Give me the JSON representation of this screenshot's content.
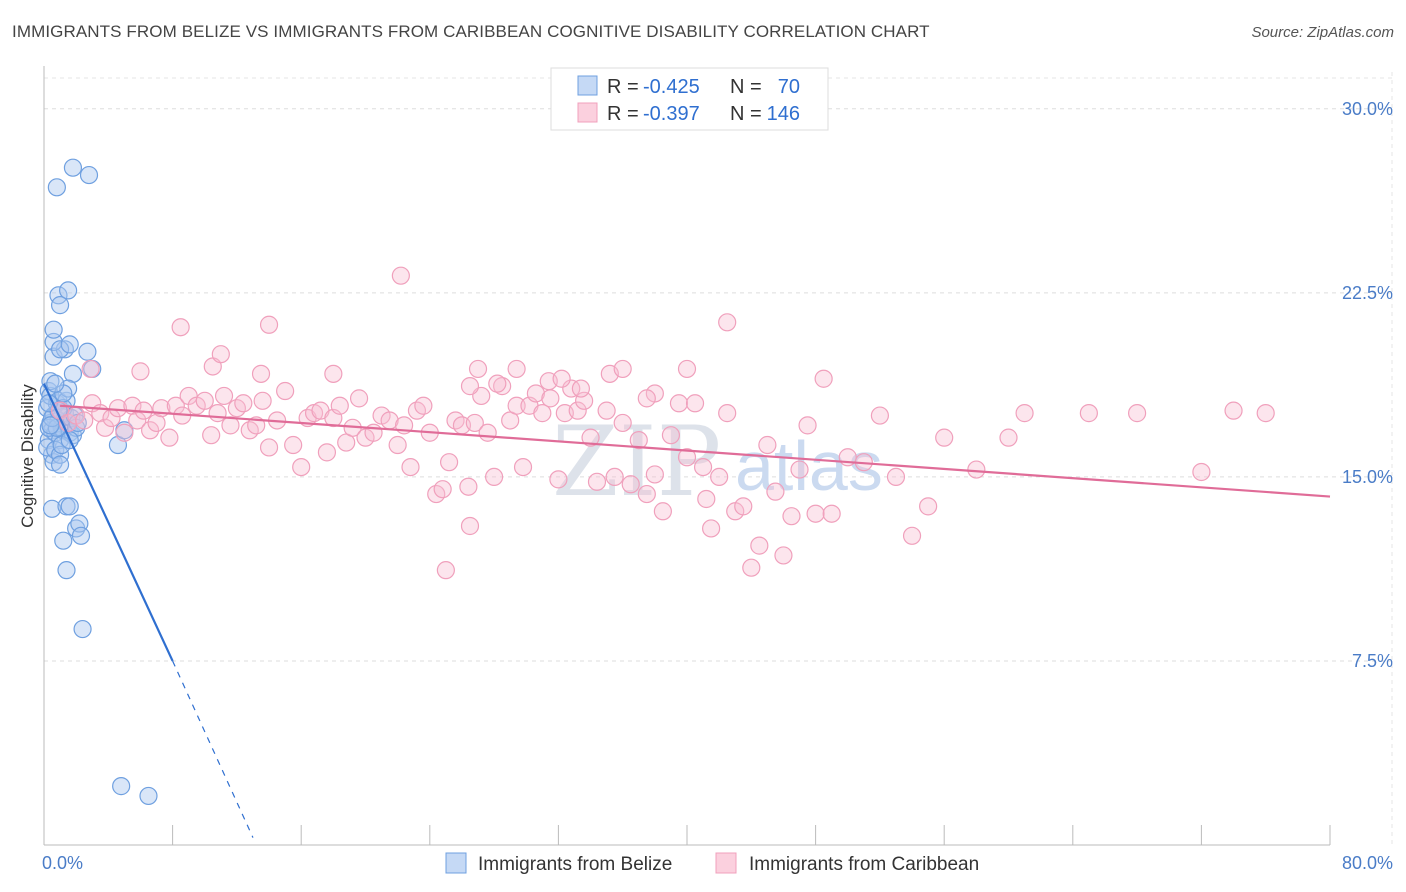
{
  "title": "IMMIGRANTS FROM BELIZE VS IMMIGRANTS FROM CARIBBEAN COGNITIVE DISABILITY CORRELATION CHART",
  "source": "Source: ZipAtlas.com",
  "watermark": {
    "zip": "ZIP",
    "atlas": "atlas"
  },
  "chart_data": {
    "type": "scatter",
    "title": "IMMIGRANTS FROM BELIZE VS IMMIGRANTS FROM CARIBBEAN COGNITIVE DISABILITY CORRELATION CHART",
    "xlabel": "",
    "ylabel": "Cognitive Disability",
    "xlim": [
      0,
      80
    ],
    "ylim": [
      0,
      31.5
    ],
    "x_tick_labels": [
      "0.0%",
      "80.0%"
    ],
    "y_ticks": [
      7.5,
      15.0,
      22.5,
      30.0
    ],
    "y_tick_labels": [
      "7.5%",
      "15.0%",
      "22.5%",
      "30.0%"
    ],
    "grid": true,
    "legend_placement": "top-center",
    "series": [
      {
        "name": "Immigrants from Belize",
        "color": "#6fa0e0",
        "line_color": "#2f6fd0",
        "R": "-0.425",
        "N": "70",
        "trend": {
          "x0": 0,
          "y0": 18.8,
          "x1": 8.0,
          "y1": 7.5,
          "dash_to_x": 13,
          "dash_to_y": 0.3
        },
        "points": [
          [
            0.2,
            17.8
          ],
          [
            0.3,
            18.5
          ],
          [
            0.4,
            17.2
          ],
          [
            0.5,
            16.9
          ],
          [
            0.3,
            16.5
          ],
          [
            0.6,
            17.5
          ],
          [
            0.8,
            18.0
          ],
          [
            0.5,
            15.9
          ],
          [
            0.7,
            16.8
          ],
          [
            0.9,
            17.3
          ],
          [
            1.0,
            16.5
          ],
          [
            1.1,
            17.0
          ],
          [
            0.4,
            18.3
          ],
          [
            0.6,
            15.6
          ],
          [
            1.2,
            16.9
          ],
          [
            1.3,
            17.6
          ],
          [
            1.5,
            17.1
          ],
          [
            1.6,
            16.8
          ],
          [
            1.8,
            16.7
          ],
          [
            0.2,
            16.2
          ],
          [
            0.3,
            17.0
          ],
          [
            0.4,
            18.9
          ],
          [
            0.9,
            18.1
          ],
          [
            1.4,
            18.1
          ],
          [
            1.7,
            17.4
          ],
          [
            1.2,
            17.8
          ],
          [
            0.8,
            17.0
          ],
          [
            0.5,
            17.4
          ],
          [
            0.7,
            16.1
          ],
          [
            1.0,
            15.9
          ],
          [
            1.1,
            16.3
          ],
          [
            1.9,
            17.5
          ],
          [
            2.0,
            17.0
          ],
          [
            0.6,
            19.9
          ],
          [
            1.3,
            20.2
          ],
          [
            1.8,
            19.2
          ],
          [
            2.7,
            20.1
          ],
          [
            3.0,
            19.4
          ],
          [
            0.6,
            20.5
          ],
          [
            1.0,
            20.2
          ],
          [
            1.6,
            20.4
          ],
          [
            0.6,
            21.0
          ],
          [
            0.9,
            22.4
          ],
          [
            1.0,
            22.0
          ],
          [
            1.5,
            22.6
          ],
          [
            0.8,
            26.8
          ],
          [
            1.8,
            27.6
          ],
          [
            2.8,
            27.3
          ],
          [
            0.5,
            13.7
          ],
          [
            1.4,
            13.8
          ],
          [
            1.6,
            13.8
          ],
          [
            2.0,
            12.9
          ],
          [
            2.2,
            13.1
          ],
          [
            2.3,
            12.6
          ],
          [
            1.2,
            12.4
          ],
          [
            1.4,
            11.2
          ],
          [
            2.4,
            8.8
          ],
          [
            4.6,
            16.3
          ],
          [
            5.0,
            16.9
          ],
          [
            4.8,
            2.4
          ],
          [
            6.5,
            2.0
          ],
          [
            1.0,
            15.5
          ],
          [
            0.9,
            17.7
          ],
          [
            1.5,
            18.6
          ],
          [
            0.4,
            17.1
          ],
          [
            1.2,
            18.4
          ],
          [
            0.3,
            18.0
          ],
          [
            0.7,
            18.8
          ],
          [
            1.6,
            16.5
          ],
          [
            2.1,
            17.2
          ]
        ]
      },
      {
        "name": "Immigrants from Caribbean",
        "color": "#f0a0bc",
        "line_color": "#e06c98",
        "R": "-0.397",
        "N": "146",
        "trend": {
          "x0": 1.0,
          "y0": 17.9,
          "x1": 80.0,
          "y1": 14.2
        },
        "points": [
          [
            1.0,
            17.7
          ],
          [
            1.5,
            17.2
          ],
          [
            2.0,
            17.5
          ],
          [
            2.5,
            17.3
          ],
          [
            3.0,
            18.0
          ],
          [
            3.5,
            17.6
          ],
          [
            3.8,
            17.0
          ],
          [
            4.2,
            17.4
          ],
          [
            4.6,
            17.8
          ],
          [
            5.0,
            16.8
          ],
          [
            5.5,
            17.9
          ],
          [
            5.8,
            17.3
          ],
          [
            6.2,
            17.7
          ],
          [
            6.6,
            16.9
          ],
          [
            7.0,
            17.2
          ],
          [
            7.3,
            17.8
          ],
          [
            7.8,
            16.6
          ],
          [
            8.2,
            17.9
          ],
          [
            8.6,
            17.5
          ],
          [
            9.0,
            18.3
          ],
          [
            9.5,
            17.9
          ],
          [
            10.0,
            18.1
          ],
          [
            10.4,
            16.7
          ],
          [
            10.8,
            17.6
          ],
          [
            11.2,
            18.3
          ],
          [
            11.6,
            17.1
          ],
          [
            12.0,
            17.8
          ],
          [
            12.4,
            18.0
          ],
          [
            12.8,
            16.9
          ],
          [
            13.2,
            17.1
          ],
          [
            13.6,
            18.1
          ],
          [
            14.0,
            16.2
          ],
          [
            14.5,
            17.3
          ],
          [
            15.0,
            18.5
          ],
          [
            15.5,
            16.3
          ],
          [
            16.0,
            15.4
          ],
          [
            16.4,
            17.4
          ],
          [
            16.8,
            17.6
          ],
          [
            17.2,
            17.7
          ],
          [
            17.6,
            16.0
          ],
          [
            18.0,
            17.4
          ],
          [
            18.4,
            17.9
          ],
          [
            18.8,
            16.4
          ],
          [
            19.2,
            17.0
          ],
          [
            19.6,
            18.2
          ],
          [
            20.0,
            16.6
          ],
          [
            20.5,
            16.8
          ],
          [
            21.0,
            17.5
          ],
          [
            21.5,
            17.3
          ],
          [
            22.0,
            16.3
          ],
          [
            22.4,
            17.1
          ],
          [
            22.8,
            15.4
          ],
          [
            23.2,
            17.7
          ],
          [
            23.6,
            17.9
          ],
          [
            24.0,
            16.8
          ],
          [
            24.4,
            14.3
          ],
          [
            24.8,
            14.5
          ],
          [
            25.2,
            15.6
          ],
          [
            25.6,
            17.3
          ],
          [
            26.0,
            17.1
          ],
          [
            26.4,
            14.6
          ],
          [
            26.8,
            17.2
          ],
          [
            27.2,
            18.3
          ],
          [
            27.6,
            16.8
          ],
          [
            28.0,
            15.0
          ],
          [
            28.5,
            18.7
          ],
          [
            29.0,
            17.3
          ],
          [
            29.4,
            17.9
          ],
          [
            29.8,
            15.4
          ],
          [
            30.2,
            17.9
          ],
          [
            30.6,
            18.4
          ],
          [
            31.0,
            17.6
          ],
          [
            31.5,
            18.2
          ],
          [
            32.0,
            14.9
          ],
          [
            32.4,
            17.6
          ],
          [
            32.8,
            18.6
          ],
          [
            33.2,
            17.7
          ],
          [
            33.6,
            18.1
          ],
          [
            34.0,
            16.6
          ],
          [
            34.4,
            14.8
          ],
          [
            35.0,
            17.7
          ],
          [
            35.5,
            15.0
          ],
          [
            36.0,
            17.2
          ],
          [
            36.5,
            14.7
          ],
          [
            37.0,
            16.5
          ],
          [
            37.5,
            14.3
          ],
          [
            38.0,
            18.4
          ],
          [
            38.5,
            13.6
          ],
          [
            39.0,
            16.7
          ],
          [
            39.5,
            18.0
          ],
          [
            40.0,
            15.8
          ],
          [
            40.5,
            18.0
          ],
          [
            41.0,
            15.4
          ],
          [
            41.5,
            12.9
          ],
          [
            42.0,
            15.0
          ],
          [
            42.5,
            17.6
          ],
          [
            43.0,
            13.6
          ],
          [
            43.5,
            13.8
          ],
          [
            44.0,
            11.3
          ],
          [
            44.5,
            12.2
          ],
          [
            45.0,
            16.3
          ],
          [
            45.5,
            14.4
          ],
          [
            46.0,
            11.8
          ],
          [
            46.5,
            13.4
          ],
          [
            47.0,
            15.3
          ],
          [
            47.5,
            17.1
          ],
          [
            48.0,
            13.5
          ],
          [
            48.5,
            19.0
          ],
          [
            49.0,
            13.5
          ],
          [
            50.0,
            15.8
          ],
          [
            51.0,
            15.6
          ],
          [
            52.0,
            17.5
          ],
          [
            53.0,
            15.0
          ],
          [
            54.0,
            12.6
          ],
          [
            55.0,
            13.8
          ],
          [
            56.0,
            16.6
          ],
          [
            58.0,
            15.3
          ],
          [
            60.0,
            16.6
          ],
          [
            61.0,
            17.6
          ],
          [
            65.0,
            17.6
          ],
          [
            68.0,
            17.6
          ],
          [
            72.0,
            15.2
          ],
          [
            74.0,
            17.7
          ],
          [
            76.0,
            17.6
          ],
          [
            6.0,
            19.3
          ],
          [
            8.5,
            21.1
          ],
          [
            10.5,
            19.5
          ],
          [
            11.0,
            20.0
          ],
          [
            13.5,
            19.2
          ],
          [
            14.0,
            21.2
          ],
          [
            18.0,
            19.2
          ],
          [
            22.2,
            23.2
          ],
          [
            26.5,
            18.7
          ],
          [
            27.0,
            19.4
          ],
          [
            28.2,
            18.8
          ],
          [
            29.4,
            19.4
          ],
          [
            31.4,
            18.9
          ],
          [
            32.2,
            19.0
          ],
          [
            33.4,
            18.6
          ],
          [
            35.2,
            19.2
          ],
          [
            36.0,
            19.4
          ],
          [
            37.5,
            18.2
          ],
          [
            40.0,
            19.4
          ],
          [
            42.5,
            21.3
          ],
          [
            2.9,
            19.4
          ],
          [
            25.0,
            11.2
          ],
          [
            26.5,
            13.0
          ],
          [
            38.0,
            15.1
          ],
          [
            41.2,
            14.1
          ]
        ]
      }
    ]
  }
}
